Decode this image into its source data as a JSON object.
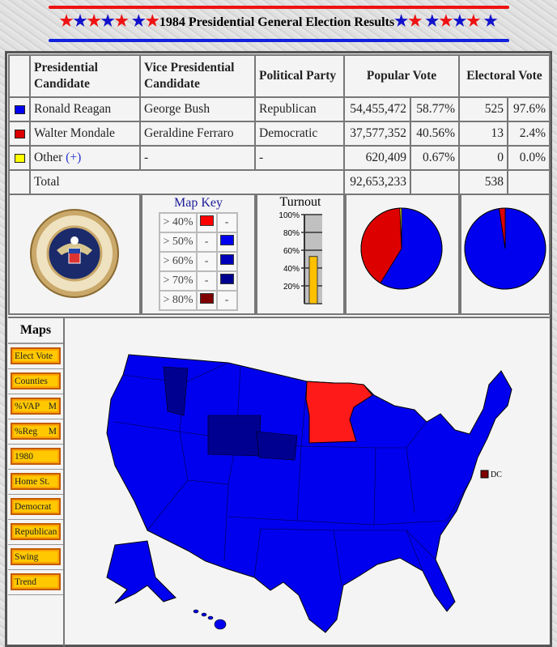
{
  "header": {
    "title": "1984 Presidential General Election Results"
  },
  "table": {
    "headers": [
      "Presidential Candidate",
      "Vice Presidential Candidate",
      "Political Party",
      "Popular Vote",
      "Electoral Vote"
    ],
    "rows": [
      {
        "color": "#0000ee",
        "pres": "Ronald Reagan",
        "vp": "George Bush",
        "party": "Republican",
        "pop": "54,455,472",
        "pop_pct": "58.77%",
        "ev": "525",
        "ev_pct": "97.6%"
      },
      {
        "color": "#dd0000",
        "pres": "Walter Mondale",
        "vp": "Geraldine Ferraro",
        "party": "Democratic",
        "pop": "37,577,352",
        "pop_pct": "40.56%",
        "ev": "13",
        "ev_pct": "2.4%"
      },
      {
        "color": "#ffff00",
        "pres": "Other",
        "more": "(+)",
        "vp": "-",
        "party": "-",
        "pop": "620,409",
        "pop_pct": "0.67%",
        "ev": "0",
        "ev_pct": "0.0%"
      }
    ],
    "total": {
      "label": "Total",
      "pop": "92,653,233",
      "ev": "538"
    }
  },
  "seal": {
    "text": "SEAL OF THE PRESIDENT OF THE UNITED STATES"
  },
  "map_key": {
    "title": "Map Key",
    "rows": [
      {
        "label": "> 40%",
        "dem": "#ff0000",
        "rep": "-"
      },
      {
        "label": "> 50%",
        "dem": "-",
        "rep": "#0000ee"
      },
      {
        "label": "> 60%",
        "dem": "-",
        "rep": "#0000bb"
      },
      {
        "label": "> 70%",
        "dem": "-",
        "rep": "#000090"
      },
      {
        "label": "> 80%",
        "dem": "#800000",
        "rep": "-"
      }
    ]
  },
  "turnout": {
    "title": "Turnout",
    "ticks": [
      "100%",
      "80%",
      "60%",
      "40%",
      "20%"
    ],
    "value_pct": 53
  },
  "pies": {
    "popular": [
      58.77,
      40.56,
      0.67
    ],
    "electoral": [
      97.6,
      2.4,
      0
    ],
    "colors": [
      "#0000ee",
      "#dd0000",
      "#ffff00"
    ]
  },
  "maps": {
    "title": "Maps",
    "buttons": [
      "Elect Vote",
      "Counties",
      "%VAP",
      "%Reg",
      "1980",
      "Home St.",
      "Democrat",
      "Republican",
      "Swing",
      "Trend"
    ],
    "m_label": "M"
  },
  "map": {
    "dc_label": "DC",
    "rep_color": "#0000ee",
    "dem_color": "#ff0000"
  }
}
